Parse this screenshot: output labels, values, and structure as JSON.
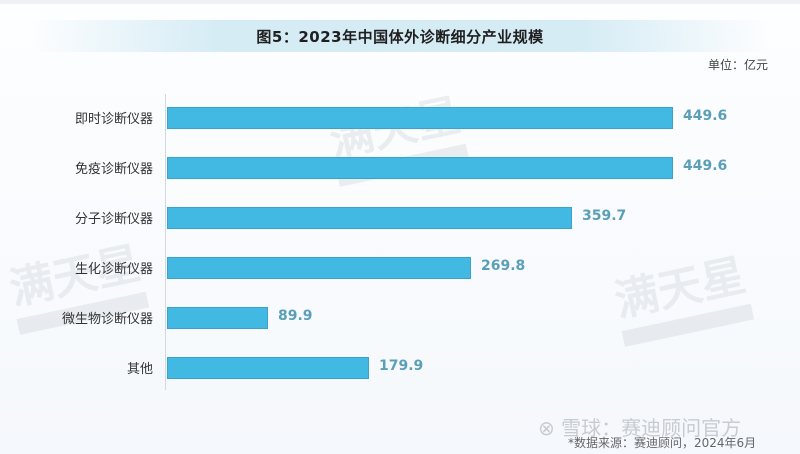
{
  "title": "图5：2023年中国体外诊断细分产业规模",
  "unit": "单位：亿元",
  "source": "*数据来源：赛迪顾问，2024年6月",
  "watermark": {
    "text": "满天星",
    "credit": "雪球：赛迪顾问官方"
  },
  "colors": {
    "bar": "#41b9e3",
    "value_label": "#5a9fb8"
  },
  "chart_data": {
    "type": "bar",
    "orientation": "horizontal",
    "title": "图5：2023年中国体外诊断细分产业规模",
    "xlabel": "",
    "ylabel": "",
    "unit": "亿元",
    "categories": [
      "即时诊断仪器",
      "免疫诊断仪器",
      "分子诊断仪器",
      "生化诊断仪器",
      "微生物诊断仪器",
      "其他"
    ],
    "values": [
      449.6,
      449.6,
      359.7,
      269.8,
      89.9,
      179.9
    ],
    "value_labels": [
      "449.6",
      "449.6",
      "359.7",
      "269.8",
      "89.9",
      "179.9"
    ],
    "grid": false,
    "legend": "none",
    "xlim": [
      0,
      450
    ]
  }
}
